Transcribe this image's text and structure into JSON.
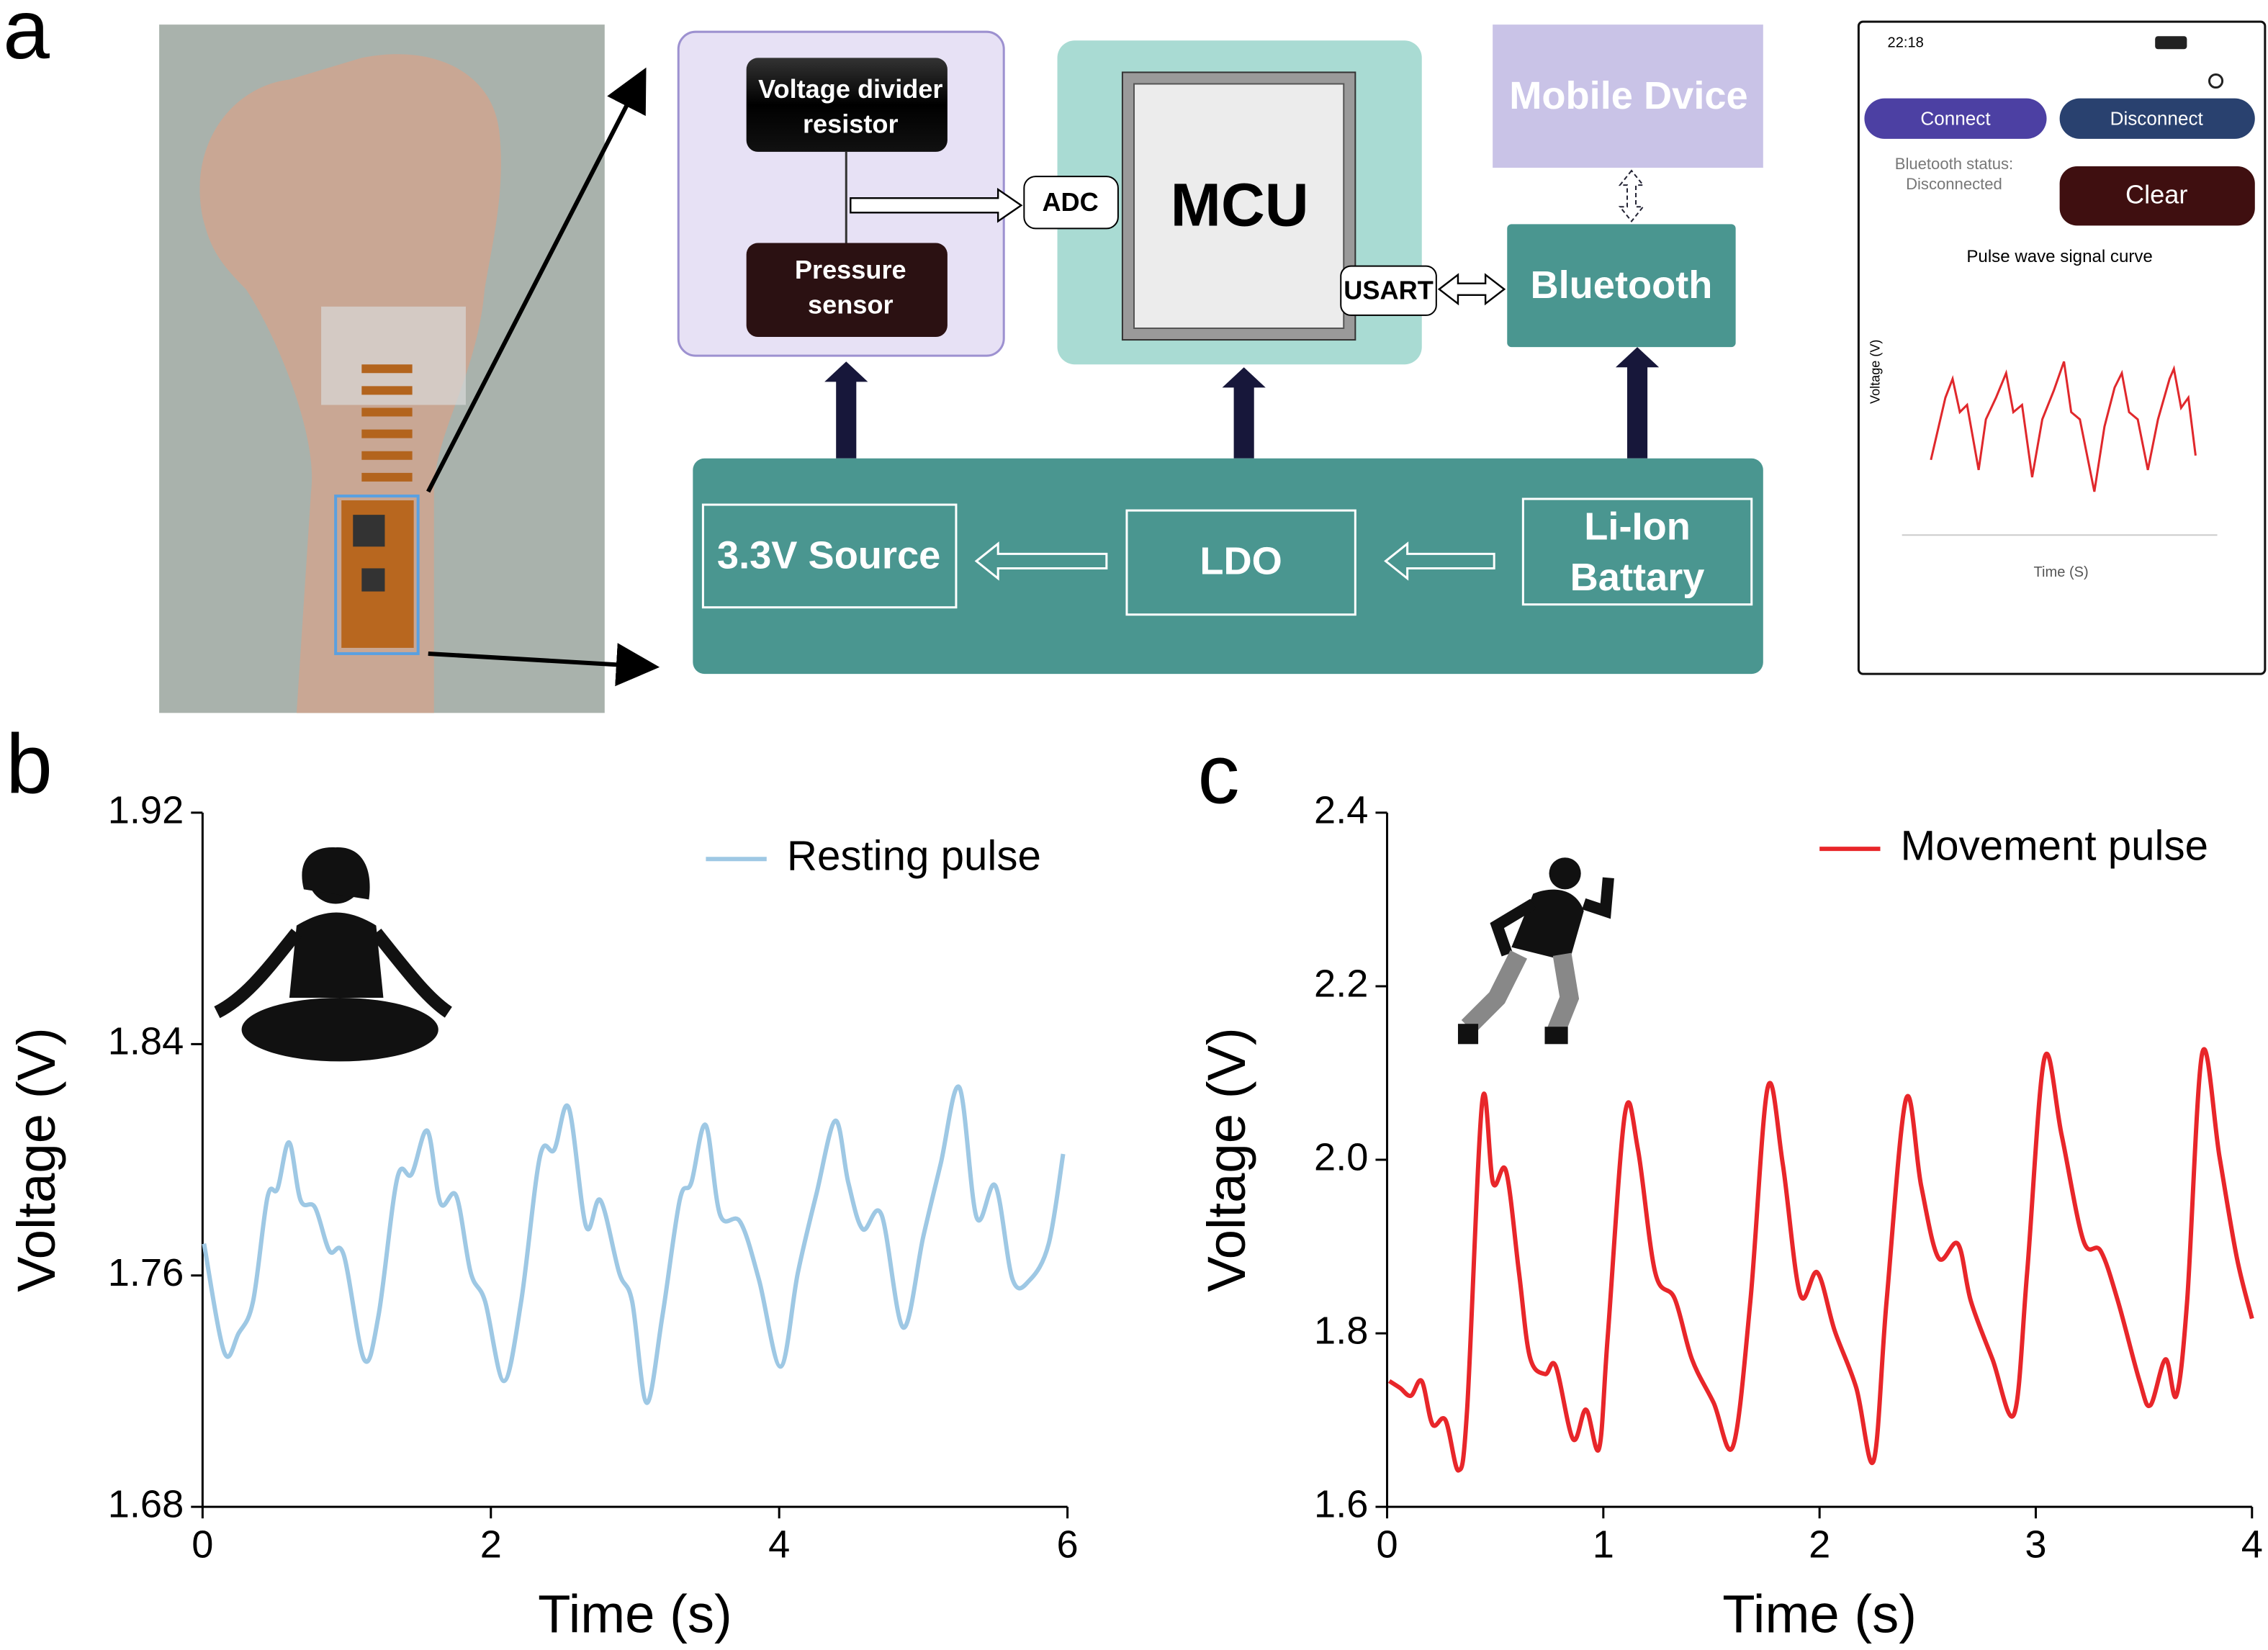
{
  "panel_labels": [
    "a",
    "b",
    "c"
  ],
  "diagram": {
    "voltage_divider": [
      "Voltage divider",
      "resistor"
    ],
    "pressure_sensor": [
      "Pressure",
      "sensor"
    ],
    "adc": "ADC",
    "mcu": "MCU",
    "usart": "USART",
    "mobile_device": "Mobile Dvice",
    "bluetooth": "Bluetooth",
    "source": "3.3V Source",
    "ldo": "LDO",
    "battery": [
      "Li-Ion",
      "Battary"
    ]
  },
  "phone": {
    "time": "22:18",
    "connect": "Connect",
    "disconnect": "Disconnect",
    "status": [
      "Bluetooth status:",
      "Disconnected"
    ],
    "clear": "Clear",
    "plot_title": "Pulse wave signal curve",
    "y_label": "Voltage (V)",
    "x_label": "Time (S)"
  },
  "chart_data": [
    {
      "type": "line",
      "x_label": "Time (s)",
      "y_label": "Voltage (V)",
      "x": [
        0.01,
        0.15,
        0.25,
        0.35,
        0.45,
        0.52,
        0.6,
        0.68,
        0.78,
        0.88,
        0.98,
        1.12,
        1.22,
        1.35,
        1.45,
        1.56,
        1.65,
        1.76,
        1.86,
        1.96,
        2.09,
        2.21,
        2.34,
        2.44,
        2.54,
        2.66,
        2.76,
        2.89,
        2.98,
        3.08,
        3.19,
        3.31,
        3.39,
        3.49,
        3.59,
        3.73,
        3.86,
        4.01,
        4.13,
        4.26,
        4.39,
        4.48,
        4.58,
        4.71,
        4.86,
        5.0,
        5.12,
        5.25,
        5.37,
        5.5,
        5.62,
        5.74,
        5.87,
        5.97
      ],
      "series": [
        {
          "name": "Resting pulse",
          "color": "#9ec8e4",
          "values": [
            1.771,
            1.7335,
            1.74,
            1.751,
            1.787,
            1.79,
            1.806,
            1.786,
            1.7835,
            1.7685,
            1.767,
            1.731,
            1.746,
            1.7935,
            1.795,
            1.81,
            1.785,
            1.7875,
            1.761,
            1.751,
            1.7235,
            1.751,
            1.801,
            1.8035,
            1.818,
            1.777,
            1.786,
            1.761,
            1.751,
            1.716,
            1.746,
            1.786,
            1.792,
            1.812,
            1.781,
            1.7785,
            1.7585,
            1.7285,
            1.761,
            1.7885,
            1.8135,
            1.792,
            1.776,
            1.781,
            1.742,
            1.7735,
            1.7985,
            1.825,
            1.78,
            1.791,
            1.7585,
            1.7585,
            1.771,
            1.802
          ]
        }
      ],
      "xlim": [
        0,
        6
      ],
      "xticks": [
        0,
        2,
        4,
        6
      ],
      "ylim": [
        1.68,
        1.92
      ],
      "yticks": [
        1.68,
        1.76,
        1.84,
        1.92
      ],
      "legend": "upper right"
    },
    {
      "type": "line",
      "x_label": "Time (s)",
      "y_label": "Voltage (V)",
      "x": [
        0.01,
        0.06,
        0.11,
        0.16,
        0.21,
        0.27,
        0.33,
        0.37,
        0.44,
        0.49,
        0.55,
        0.61,
        0.66,
        0.73,
        0.78,
        0.86,
        0.92,
        0.98,
        1.02,
        1.1,
        1.16,
        1.24,
        1.33,
        1.41,
        1.51,
        1.6,
        1.68,
        1.76,
        1.83,
        1.91,
        1.99,
        2.07,
        2.17,
        2.25,
        2.31,
        2.4,
        2.47,
        2.55,
        2.64,
        2.7,
        2.8,
        2.9,
        2.96,
        3.04,
        3.12,
        3.22,
        3.3,
        3.38,
        3.48,
        3.53,
        3.6,
        3.65,
        3.7,
        3.77,
        3.85,
        3.93,
        4.0
      ],
      "series": [
        {
          "name": "Movement pulse",
          "color": "#e8262a",
          "values": [
            1.745,
            1.737,
            1.728,
            1.745,
            1.695,
            1.7,
            1.642,
            1.712,
            2.067,
            1.973,
            1.987,
            1.87,
            1.773,
            1.753,
            1.762,
            1.678,
            1.712,
            1.667,
            1.795,
            2.053,
            2.012,
            1.87,
            1.84,
            1.77,
            1.72,
            1.67,
            1.837,
            2.083,
            1.995,
            1.845,
            1.87,
            1.803,
            1.737,
            1.653,
            1.837,
            2.07,
            1.97,
            1.887,
            1.903,
            1.837,
            1.77,
            1.707,
            1.87,
            2.117,
            2.028,
            1.907,
            1.895,
            1.837,
            1.745,
            1.717,
            1.77,
            1.728,
            1.837,
            2.123,
            2.003,
            1.887,
            1.817
          ]
        }
      ],
      "xlim": [
        0,
        4
      ],
      "xticks": [
        0,
        1,
        2,
        3,
        4
      ],
      "ylim": [
        1.6,
        2.4
      ],
      "yticks": [
        1.6,
        1.8,
        {
          "value": 2,
          "label": "2.0"
        },
        2.2,
        2.4
      ],
      "legend": "upper right"
    }
  ]
}
